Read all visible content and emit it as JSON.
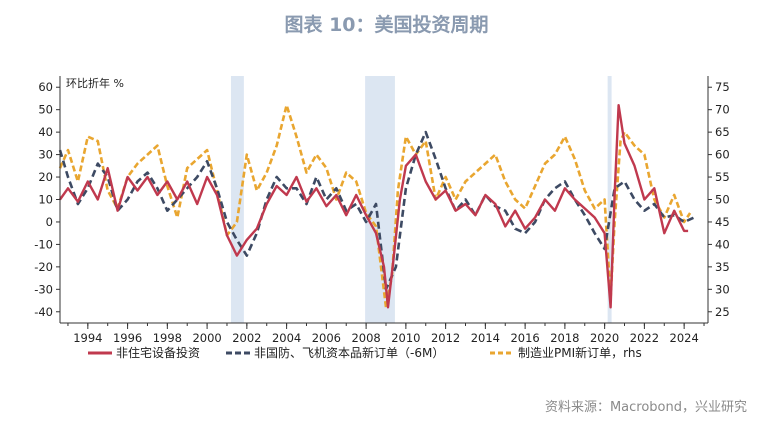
{
  "title": "图表 10：美国投资周期",
  "source": "资料来源：Macrobond，兴业研究",
  "colors": {
    "series1": "#c0394e",
    "series2": "#3d4a63",
    "series3": "#e9a630",
    "recession": "#dce6f2",
    "title": "#8a9ab0"
  },
  "chart_data": {
    "type": "line",
    "y_unit_label": "环比折年 %",
    "x_ticks": [
      "1994",
      "1996",
      "1998",
      "2000",
      "2002",
      "2004",
      "2006",
      "2008",
      "2010",
      "2012",
      "2014",
      "2016",
      "2018",
      "2020",
      "2022",
      "2024"
    ],
    "xlim": [
      1992.6,
      2025.2
    ],
    "ylim_left": [
      -45,
      65
    ],
    "yticks_left": [
      "60",
      "50",
      "40",
      "30",
      "20",
      "10",
      "0",
      "-10",
      "-20",
      "-30",
      "-40"
    ],
    "ylim_right": [
      22.5,
      77.5
    ],
    "yticks_right": [
      "75",
      "70",
      "65",
      "60",
      "55",
      "50",
      "45",
      "40",
      "35",
      "30",
      "25"
    ],
    "recessions": [
      [
        2001.2,
        2001.85
      ],
      [
        2007.95,
        2009.45
      ],
      [
        2020.15,
        2020.35
      ]
    ],
    "legend": [
      "非住宅设备投资",
      "非国防、飞机资本品新订单（-6M）",
      "制造业PMI新订单，rhs"
    ],
    "series": [
      {
        "name": "非住宅设备投资",
        "axis": "left",
        "x": [
          1992.6,
          1993.0,
          1993.5,
          1994.0,
          1994.5,
          1995.0,
          1995.5,
          1996.0,
          1996.5,
          1997.0,
          1997.5,
          1998.0,
          1998.5,
          1999.0,
          1999.5,
          2000.0,
          2000.5,
          2001.0,
          2001.5,
          2002.0,
          2002.5,
          2003.0,
          2003.5,
          2004.0,
          2004.5,
          2005.0,
          2005.5,
          2006.0,
          2006.5,
          2007.0,
          2007.5,
          2008.0,
          2008.5,
          2008.9,
          2009.1,
          2009.4,
          2009.7,
          2010.0,
          2010.5,
          2011.0,
          2011.5,
          2012.0,
          2012.5,
          2013.0,
          2013.5,
          2014.0,
          2014.5,
          2015.0,
          2015.5,
          2016.0,
          2016.5,
          2017.0,
          2017.5,
          2018.0,
          2018.5,
          2019.0,
          2019.5,
          2020.0,
          2020.3,
          2020.5,
          2020.7,
          2021.0,
          2021.5,
          2022.0,
          2022.5,
          2023.0,
          2023.5,
          2024.0,
          2024.2
        ],
        "values": [
          10,
          15,
          9,
          18,
          10,
          24,
          5,
          20,
          14,
          20,
          12,
          18,
          10,
          18,
          8,
          20,
          12,
          -6,
          -15,
          -8,
          -3,
          8,
          16,
          12,
          20,
          9,
          15,
          7,
          12,
          3,
          12,
          3,
          -5,
          -20,
          -38,
          -15,
          10,
          25,
          30,
          18,
          10,
          14,
          5,
          8,
          3,
          12,
          8,
          -2,
          5,
          -3,
          2,
          10,
          5,
          15,
          10,
          6,
          2,
          -5,
          -38,
          12,
          52,
          35,
          25,
          10,
          15,
          -5,
          5,
          -4,
          -4
        ]
      },
      {
        "name": "非国防、飞机资本品新订单（-6M）",
        "axis": "left",
        "x": [
          1992.6,
          1993.0,
          1993.5,
          1994.0,
          1994.5,
          1995.0,
          1995.5,
          1996.0,
          1996.5,
          1997.0,
          1997.5,
          1998.0,
          1998.5,
          1999.0,
          1999.5,
          2000.0,
          2000.5,
          2001.0,
          2001.5,
          2002.0,
          2002.5,
          2003.0,
          2003.5,
          2004.0,
          2004.5,
          2005.0,
          2005.5,
          2006.0,
          2006.5,
          2007.0,
          2007.5,
          2008.0,
          2008.5,
          2009.0,
          2009.5,
          2010.0,
          2010.5,
          2011.0,
          2011.5,
          2012.0,
          2012.5,
          2013.0,
          2013.5,
          2014.0,
          2014.5,
          2015.0,
          2015.5,
          2016.0,
          2016.5,
          2017.0,
          2017.5,
          2018.0,
          2018.5,
          2019.0,
          2019.5,
          2020.0,
          2020.5,
          2021.0,
          2021.5,
          2022.0,
          2022.5,
          2023.0,
          2023.5,
          2024.0,
          2024.5
        ],
        "values": [
          32,
          20,
          8,
          15,
          26,
          20,
          5,
          10,
          18,
          22,
          15,
          5,
          10,
          15,
          20,
          27,
          15,
          0,
          -8,
          -15,
          -5,
          10,
          20,
          15,
          15,
          8,
          20,
          10,
          15,
          5,
          8,
          0,
          8,
          -30,
          -20,
          15,
          30,
          40,
          28,
          15,
          5,
          10,
          3,
          12,
          7,
          5,
          -3,
          -5,
          0,
          10,
          15,
          18,
          10,
          3,
          -5,
          -12,
          15,
          18,
          10,
          5,
          8,
          2,
          3,
          0,
          2
        ]
      },
      {
        "name": "制造业PMI新订单，rhs",
        "axis": "right",
        "x": [
          1992.6,
          1993.0,
          1993.5,
          1994.0,
          1994.5,
          1995.0,
          1995.5,
          1996.0,
          1996.5,
          1997.0,
          1997.5,
          1998.0,
          1998.5,
          1999.0,
          1999.5,
          2000.0,
          2000.5,
          2001.0,
          2001.5,
          2002.0,
          2002.5,
          2003.0,
          2003.5,
          2004.0,
          2004.5,
          2005.0,
          2005.5,
          2006.0,
          2006.5,
          2007.0,
          2007.5,
          2008.0,
          2008.5,
          2009.0,
          2009.3,
          2009.6,
          2010.0,
          2010.5,
          2011.0,
          2011.5,
          2012.0,
          2012.5,
          2013.0,
          2013.5,
          2014.0,
          2014.5,
          2015.0,
          2015.5,
          2016.0,
          2016.5,
          2017.0,
          2017.5,
          2018.0,
          2018.5,
          2019.0,
          2019.5,
          2020.0,
          2020.3,
          2020.5,
          2020.8,
          2021.0,
          2021.5,
          2022.0,
          2022.5,
          2023.0,
          2023.5,
          2024.0,
          2024.3
        ],
        "values": [
          57,
          61,
          54,
          64,
          63,
          52,
          48,
          55,
          58,
          60,
          62,
          53,
          46,
          57,
          59,
          61,
          52,
          42,
          45,
          60,
          52,
          56,
          62,
          71,
          64,
          56,
          60,
          57,
          50,
          56,
          54,
          47,
          44,
          26,
          33,
          52,
          64,
          60,
          63,
          50,
          55,
          50,
          54,
          56,
          58,
          60,
          54,
          50,
          48,
          53,
          58,
          60,
          64,
          59,
          52,
          48,
          50,
          28,
          45,
          63,
          65,
          62,
          60,
          50,
          46,
          51,
          45,
          47
        ]
      }
    ]
  }
}
